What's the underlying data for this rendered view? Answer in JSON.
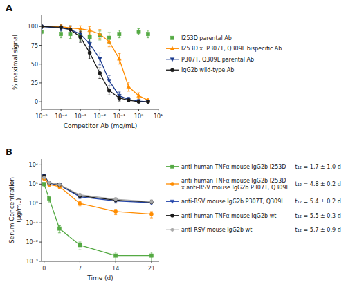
{
  "chart_data": [
    {
      "type": "line",
      "title": "A",
      "x_label": "Competitor Ab (mg/mL)",
      "y_label": "% maximal signal",
      "log": "x",
      "xlim": [
        1e-05,
        11.220184543019634
      ],
      "xticks": [
        {
          "value": 1e-05,
          "label": "10⁻⁵"
        },
        {
          "value": 0.0001,
          "label": "10⁻⁴"
        },
        {
          "value": 0.001,
          "label": "10⁻³"
        },
        {
          "value": 0.01,
          "label": "10⁻²"
        },
        {
          "value": 0.1,
          "label": "10⁻¹"
        },
        {
          "value": 1,
          "label": "10⁰"
        },
        {
          "value": 10,
          "label": "10¹"
        }
      ],
      "ylim": [
        -10,
        115
      ],
      "yticks": [
        0,
        25,
        50,
        75,
        100
      ],
      "legend": "right",
      "series": [
        {
          "name": "I253D parental Ab",
          "type": "scatter",
          "color": "#55aa44",
          "marker": "square",
          "x": [
            1e-05,
            0.0001,
            0.0003,
            0.001,
            0.003,
            0.01,
            0.03,
            0.1,
            1.0,
            3.0
          ],
          "values": [
            93,
            90,
            90,
            88,
            86,
            88,
            85,
            90,
            93,
            90
          ],
          "errors": [
            4,
            5,
            6,
            6,
            7,
            6,
            7,
            5,
            4,
            5
          ]
        },
        {
          "name": "I253D x  P307T, Q309L bispecific Ab",
          "type": "line",
          "color": "#ff8c00",
          "marker": "triangle-up",
          "x": [
            1e-05,
            0.0001,
            0.0003,
            0.001,
            0.003,
            0.01,
            0.03,
            0.1,
            0.3,
            1.0,
            3.0
          ],
          "values": [
            100,
            100,
            98,
            97,
            95,
            90,
            80,
            57,
            20,
            8,
            2
          ],
          "errors": [
            2,
            3,
            3,
            4,
            5,
            6,
            7,
            7,
            6,
            4,
            2
          ]
        },
        {
          "name": "P307T, Q309L parental Ab",
          "type": "line",
          "color": "#1a3a8f",
          "marker": "triangle-down",
          "x": [
            1e-05,
            0.0001,
            0.0003,
            0.001,
            0.003,
            0.01,
            0.03,
            0.1,
            0.3,
            1.0,
            3.0
          ],
          "values": [
            100,
            98,
            96,
            90,
            77,
            57,
            28,
            8,
            3,
            1,
            0
          ],
          "errors": [
            3,
            4,
            4,
            6,
            7,
            8,
            7,
            5,
            3,
            2,
            1
          ]
        },
        {
          "name": "IgG2b wild-type Ab",
          "type": "line",
          "color": "#1a1a1a",
          "marker": "circle",
          "x": [
            1e-05,
            0.0001,
            0.0003,
            0.001,
            0.003,
            0.01,
            0.03,
            0.1,
            0.3,
            1.0,
            3.0
          ],
          "values": [
            100,
            99,
            96,
            86,
            65,
            38,
            15,
            5,
            2,
            0,
            0
          ],
          "errors": [
            2,
            3,
            5,
            7,
            8,
            7,
            6,
            4,
            2,
            1,
            1
          ]
        }
      ]
    },
    {
      "type": "line",
      "title": "B",
      "x_label": "Time (d)",
      "y_label": "Serum Concentration\n(μg/mL)",
      "log": "y",
      "xlim": [
        -0.5,
        22.5
      ],
      "xticks": [
        0,
        7,
        14,
        21
      ],
      "ylim": [
        0.001,
        200
      ],
      "yticks": [
        {
          "value": 0.001,
          "label": "10⁻³"
        },
        {
          "value": 0.01,
          "label": "10⁻²"
        },
        {
          "value": 0.1,
          "label": "10⁻¹"
        },
        {
          "value": 1,
          "label": "10⁰"
        },
        {
          "value": 10,
          "label": "10¹"
        },
        {
          "value": 100,
          "label": "10²"
        }
      ],
      "legend": "right",
      "series": [
        {
          "name": "anti-human TNFα mouse IgG2b I253D",
          "t12_label": "t₁₂ = 1.7 ± 1.0 d",
          "color": "#55aa44",
          "marker": "square",
          "x": [
            0,
            1,
            3,
            7,
            14,
            21
          ],
          "values": [
            10.0,
            1.8,
            0.05,
            0.007,
            0.002,
            0.002
          ],
          "errors": [
            2.0,
            0.6,
            0.02,
            0.003,
            0.001,
            0.001
          ]
        },
        {
          "name": "anti-human TNFα mouse IgG2b I253D\nx anti-RSV mouse IgG2b P307T, Q309L",
          "t12_label": "t₁₂ = 4.8 ± 0.2 d",
          "color": "#ff8c00",
          "marker": "circle",
          "x": [
            0,
            1,
            3,
            7,
            14,
            21
          ],
          "values": [
            20.0,
            9.5,
            7.5,
            1.0,
            0.38,
            0.28
          ],
          "errors": [
            4.0,
            2.0,
            1.5,
            0.25,
            0.12,
            0.1
          ]
        },
        {
          "name": "anti-RSV mouse IgG2b P307T, Q309L",
          "t12_label": "t₁₂ = 5.4 ± 0.2 d",
          "color": "#2244aa",
          "marker": "triangle-down",
          "x": [
            0,
            1,
            3,
            7,
            14,
            21
          ],
          "values": [
            28.0,
            11.0,
            9.0,
            2.2,
            1.35,
            1.1
          ],
          "errors": [
            5.0,
            2.0,
            1.5,
            0.4,
            0.3,
            0.25
          ]
        },
        {
          "name": "anti-human TNFα mouse IgG2b wt",
          "t12_label": "t₁₂ = 5.5 ± 0.3 d",
          "color": "#1a1a1a",
          "marker": "circle",
          "x": [
            0,
            1,
            3,
            7,
            14,
            21
          ],
          "values": [
            26.0,
            11.5,
            9.5,
            2.5,
            1.5,
            1.2
          ],
          "errors": [
            5.0,
            2.0,
            1.5,
            0.45,
            0.3,
            0.2
          ]
        },
        {
          "name": "anti-RSV mouse IgG2b wt",
          "t12_label": "t₁₂ = 5.7 ± 0.9 d",
          "color": "#aaaaaa",
          "marker": "diamond",
          "x": [
            0,
            1,
            3,
            7,
            14,
            21
          ],
          "values": [
            22.0,
            12.0,
            9.5,
            2.8,
            1.65,
            1.25
          ],
          "errors": [
            4.5,
            2.2,
            1.6,
            0.5,
            0.35,
            0.28
          ]
        }
      ]
    }
  ]
}
